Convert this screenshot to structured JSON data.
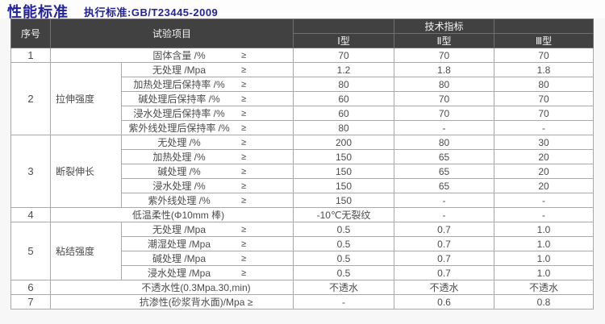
{
  "page": {
    "title": "性能标准",
    "subtitle": "执行标准:GB/T23445-2009",
    "accent_color": "#22229b",
    "header_bg_color": "#414141",
    "border_color": "#a9a9a9"
  },
  "table": {
    "header": {
      "col_no": "序号",
      "col_item": "试验项目",
      "col_tech": "技术指标",
      "types": [
        "Ⅰ型",
        "Ⅱ型",
        "Ⅲ型"
      ]
    },
    "gte_symbol": "≥",
    "groups": [
      {
        "no": "1",
        "category": null,
        "items": [
          {
            "label": "固体含量 /%",
            "gte": true,
            "values": [
              "70",
              "70",
              "70"
            ]
          }
        ]
      },
      {
        "no": "2",
        "category": "拉伸强度",
        "items": [
          {
            "label": "无处理 /Mpa",
            "gte": true,
            "values": [
              "1.2",
              "1.8",
              "1.8"
            ]
          },
          {
            "label": "加热处理后保持率 /%",
            "gte": true,
            "values": [
              "80",
              "80",
              "80"
            ]
          },
          {
            "label": "碱处理后保持率 /%",
            "gte": true,
            "values": [
              "60",
              "70",
              "70"
            ]
          },
          {
            "label": "浸水处理后保持率 /%",
            "gte": true,
            "values": [
              "60",
              "70",
              "70"
            ]
          },
          {
            "label": "紫外线处理后保持率 /%",
            "gte": true,
            "values": [
              "80",
              "-",
              "-"
            ]
          }
        ]
      },
      {
        "no": "3",
        "category": "断裂伸长",
        "items": [
          {
            "label": "无处理 /%",
            "gte": true,
            "values": [
              "200",
              "80",
              "30"
            ]
          },
          {
            "label": "加热处理 /%",
            "gte": true,
            "values": [
              "150",
              "65",
              "20"
            ]
          },
          {
            "label": "碱处理 /%",
            "gte": true,
            "values": [
              "150",
              "65",
              "20"
            ]
          },
          {
            "label": "浸水处理 /%",
            "gte": true,
            "values": [
              "150",
              "65",
              "20"
            ]
          },
          {
            "label": "紫外线处理 /%",
            "gte": true,
            "values": [
              "150",
              "-",
              "-"
            ]
          }
        ]
      },
      {
        "no": "4",
        "category": null,
        "items": [
          {
            "label": "低温柔性(Φ10mm 棒)",
            "gte": false,
            "values": [
              "-10℃无裂纹",
              "-",
              "-"
            ]
          }
        ]
      },
      {
        "no": "5",
        "category": "粘结强度",
        "items": [
          {
            "label": "无处理 /Mpa",
            "gte": true,
            "values": [
              "0.5",
              "0.7",
              "1.0"
            ]
          },
          {
            "label": "潮湿处理 /Mpa",
            "gte": true,
            "values": [
              "0.5",
              "0.7",
              "1.0"
            ]
          },
          {
            "label": "碱处理 /Mpa",
            "gte": true,
            "values": [
              "0.5",
              "0.7",
              "1.0"
            ]
          },
          {
            "label": "浸水处理 /Mpa",
            "gte": true,
            "values": [
              "0.5",
              "0.7",
              "1.0"
            ]
          }
        ]
      },
      {
        "no": "6",
        "category": null,
        "shift": true,
        "items": [
          {
            "label": "不透水性(0.3Mpa.30,min)",
            "gte": false,
            "values": [
              "不透水",
              "不透水",
              "不透水"
            ]
          }
        ]
      },
      {
        "no": "7",
        "category": null,
        "shift": true,
        "items": [
          {
            "label": "抗渗性(砂浆背水面)/Mpa ≥",
            "gte": false,
            "values": [
              "-",
              "0.6",
              "0.8"
            ]
          }
        ]
      }
    ]
  }
}
